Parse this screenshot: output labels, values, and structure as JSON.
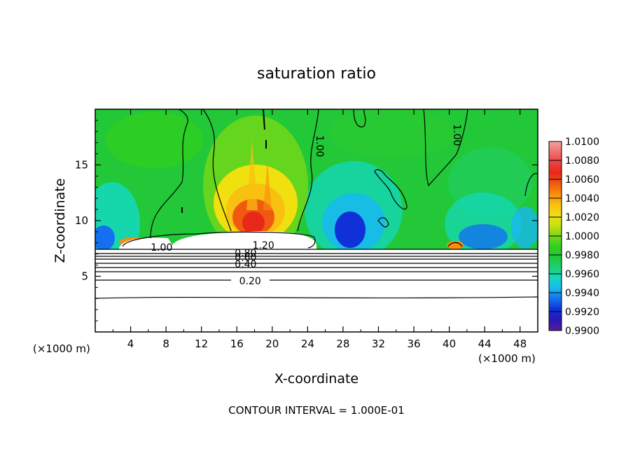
{
  "chart_data": {
    "type": "heatmap",
    "title": "saturation ratio",
    "xlabel": "X-coordinate",
    "ylabel": "Z-coordinate",
    "x_unit_label": "(×1000 m)",
    "y_unit_label": "(×1000 m)",
    "xlim": [
      0,
      50
    ],
    "ylim": [
      0,
      20
    ],
    "x_ticks": [
      4,
      8,
      12,
      16,
      20,
      24,
      28,
      32,
      36,
      40,
      44,
      48
    ],
    "y_ticks": [
      5,
      10,
      15
    ],
    "footer": "CONTOUR INTERVAL = 1.000E-01",
    "colorbar": {
      "min": 0.99,
      "max": 1.01,
      "tick_labels": [
        "0.9900",
        "0.9920",
        "0.9940",
        "0.9960",
        "0.9980",
        "1.0000",
        "1.0020",
        "1.0040",
        "1.0060",
        "1.0080",
        "1.0100"
      ],
      "colors": [
        "#5a1a9a",
        "#2a18b8",
        "#1030d8",
        "#1470f0",
        "#18b8f0",
        "#14d8c0",
        "#1ed070",
        "#22c838",
        "#30d020",
        "#78d818",
        "#c8e010",
        "#f0e010",
        "#f8c010",
        "#f88e0c",
        "#f05a10",
        "#e82818",
        "#f04040",
        "#f07070",
        "#f4a0a0"
      ]
    },
    "contour_labels": [
      {
        "text": "1.00",
        "x": 7.5,
        "y": 7.6
      },
      {
        "text": "1.20",
        "x": 19.0,
        "y": 7.8
      },
      {
        "text": "0.80",
        "x": 17.0,
        "y": 7.1
      },
      {
        "text": "0.60",
        "x": 17.0,
        "y": 6.7
      },
      {
        "text": "0.40",
        "x": 17.0,
        "y": 6.1
      },
      {
        "text": "0.20",
        "x": 17.5,
        "y": 4.6
      },
      {
        "text": "1.00",
        "x": 25.0,
        "y": 17.0
      },
      {
        "text": "1.00",
        "x": 40.5,
        "y": 18.0
      }
    ],
    "lower_contour_levels": [
      {
        "level": "0.20",
        "z": 4.6
      },
      {
        "level": "0.40",
        "z": 5.3
      },
      {
        "level": "0.60",
        "z": 6.0
      },
      {
        "level": "0.80",
        "z": 6.7
      }
    ]
  }
}
